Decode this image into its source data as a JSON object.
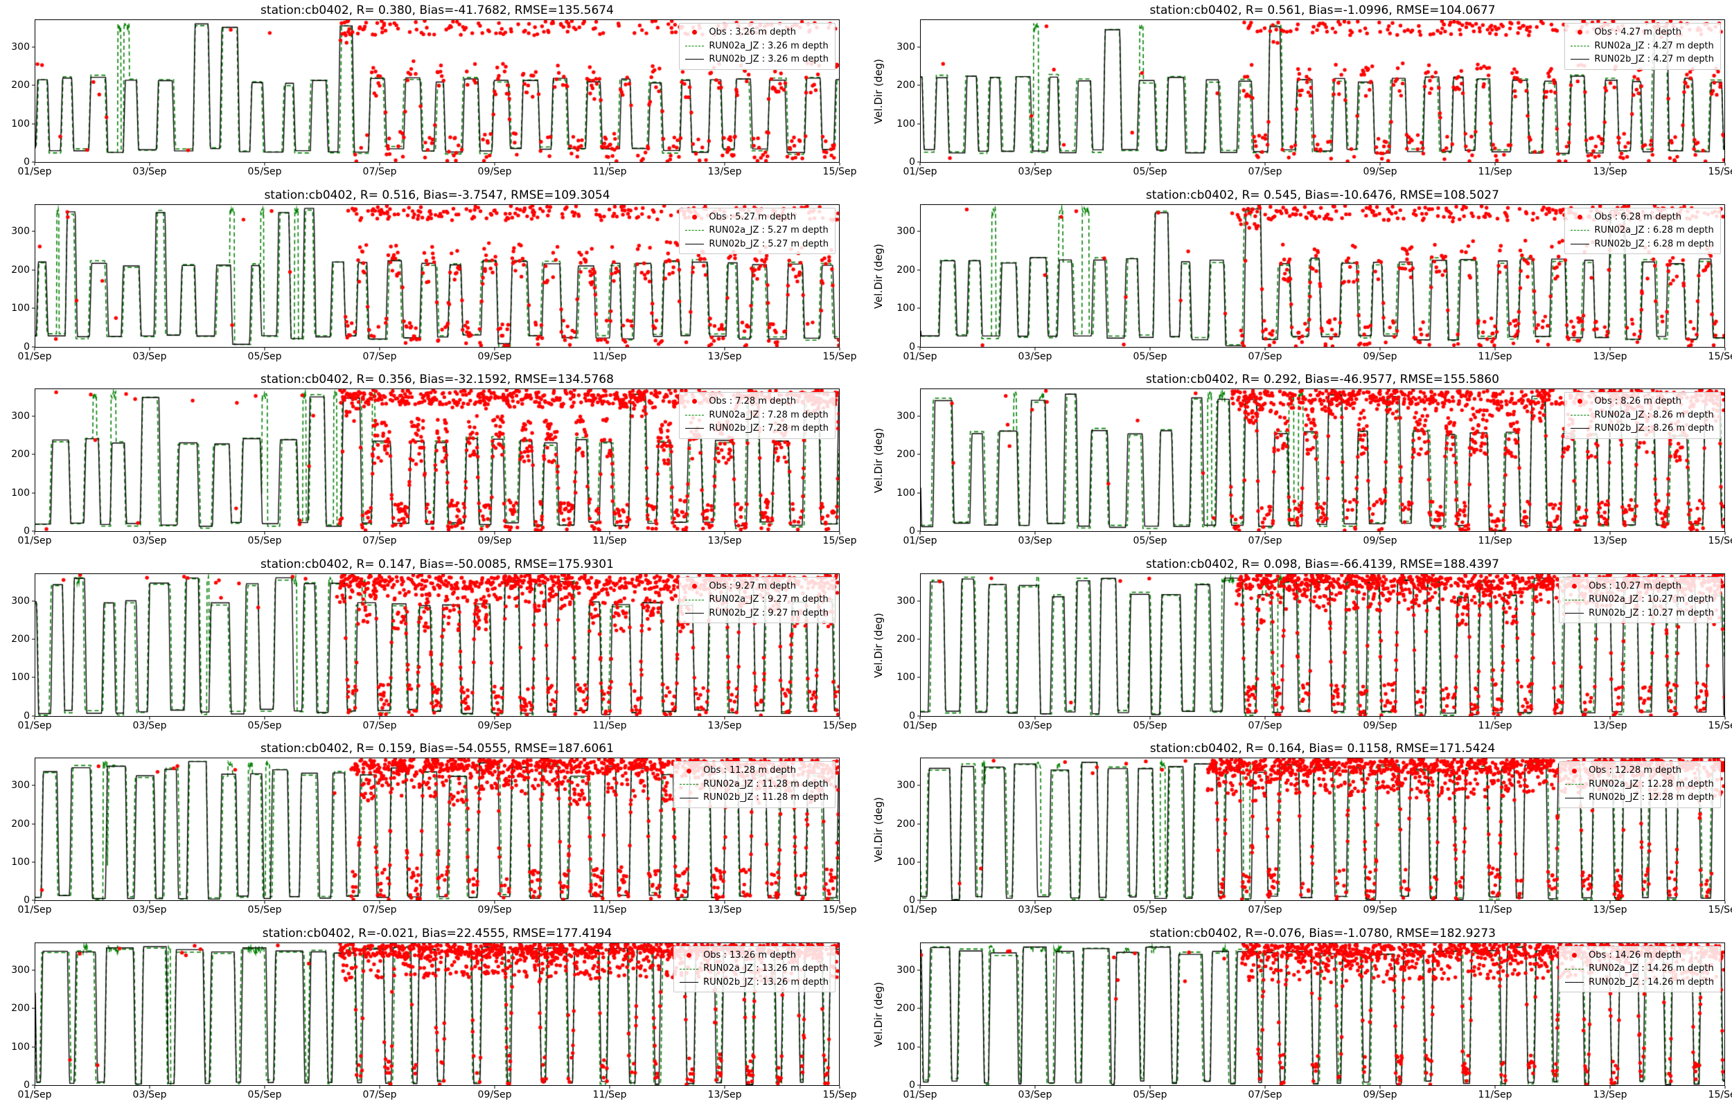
{
  "figure": {
    "station": "cb0402",
    "x_ticks": [
      "01/Sep",
      "03/Sep",
      "05/Sep",
      "07/Sep",
      "09/Sep",
      "11/Sep",
      "13/Sep",
      "15/Sep"
    ],
    "y_ticks": [
      0,
      100,
      200,
      300
    ],
    "ylabel_right_column": "Vel.Dir (deg)",
    "colors": {
      "obs": "#ff0000",
      "run02a": "#008000",
      "run02b": "#000000"
    },
    "grid": false,
    "legend_location": "upper right",
    "layout": "6 rows x 2 columns of time-series subplots, 01/Sep to 15/Sep"
  },
  "chart_data": [
    {
      "type": "line+scatter",
      "title": "station:cb0402, R= 0.380, Bias=-41.7682, RMSE=135.5674",
      "stats": {
        "R": 0.38,
        "Bias": -41.7682,
        "RMSE": 135.5674
      },
      "depth_m": 3.26,
      "ylabel": "",
      "xlabel": "",
      "xlim": [
        "01/Sep",
        "15/Sep"
      ],
      "ylim": [
        0,
        370
      ],
      "series": [
        {
          "name": "Obs : 3.26 m depth",
          "style": "scatter",
          "color": "#ff0000"
        },
        {
          "name": "RUN02a_JZ : 3.26 m depth",
          "style": "dashed",
          "color": "#008000"
        },
        {
          "name": "RUN02b_JZ : 3.26 m depth",
          "style": "solid",
          "color": "#000000"
        }
      ],
      "pattern": {
        "seed": 1,
        "low": 30,
        "high": 213,
        "duty": 0.46,
        "spike": 0.05,
        "dip": 0.0,
        "green_spikes": 2,
        "obs_start": 5.3,
        "obs_pre": 0.012,
        "obs_density": 0.42,
        "obs_top": 0.3,
        "obs_spread": 90,
        "obs_reps": 1
      }
    },
    {
      "type": "line+scatter",
      "title": "station:cb0402, R= 0.561, Bias=-1.0996, RMSE=104.0677",
      "stats": {
        "R": 0.561,
        "Bias": -1.0996,
        "RMSE": 104.0677
      },
      "depth_m": 4.27,
      "ylabel": "Vel.Dir (deg)",
      "xlabel": "",
      "xlim": [
        "01/Sep",
        "15/Sep"
      ],
      "ylim": [
        0,
        370
      ],
      "series": [
        {
          "name": "Obs : 4.27 m depth",
          "style": "scatter",
          "color": "#ff0000"
        },
        {
          "name": "RUN02a_JZ : 4.27 m depth",
          "style": "dashed",
          "color": "#008000"
        },
        {
          "name": "RUN02b_JZ : 4.27 m depth",
          "style": "solid",
          "color": "#000000"
        }
      ],
      "pattern": {
        "seed": 2,
        "low": 28,
        "high": 216,
        "duty": 0.46,
        "spike": 0.07,
        "dip": 0.0,
        "green_spikes": 2,
        "obs_start": 5.6,
        "obs_pre": 0.01,
        "obs_density": 0.45,
        "obs_top": 0.32,
        "obs_spread": 90,
        "obs_reps": 1
      }
    },
    {
      "type": "line+scatter",
      "title": "station:cb0402, R= 0.516, Bias=-3.7547, RMSE=109.3054",
      "stats": {
        "R": 0.516,
        "Bias": -3.7547,
        "RMSE": 109.3054
      },
      "depth_m": 5.27,
      "ylabel": "",
      "xlabel": "",
      "xlim": [
        "01/Sep",
        "15/Sep"
      ],
      "ylim": [
        0,
        370
      ],
      "series": [
        {
          "name": "Obs : 5.27 m depth",
          "style": "scatter",
          "color": "#ff0000"
        },
        {
          "name": "RUN02a_JZ : 5.27 m depth",
          "style": "dashed",
          "color": "#008000"
        },
        {
          "name": "RUN02b_JZ : 5.27 m depth",
          "style": "solid",
          "color": "#000000"
        }
      ],
      "pattern": {
        "seed": 3,
        "low": 26,
        "high": 218,
        "duty": 0.47,
        "spike": 0.09,
        "dip": 0.02,
        "green_spikes": 4,
        "obs_start": 5.4,
        "obs_pre": 0.012,
        "obs_density": 0.5,
        "obs_top": 0.33,
        "obs_spread": 100,
        "obs_reps": 1
      }
    },
    {
      "type": "line+scatter",
      "title": "station:cb0402, R= 0.545, Bias=-10.6476, RMSE=108.5027",
      "stats": {
        "R": 0.545,
        "Bias": -10.6476,
        "RMSE": 108.5027
      },
      "depth_m": 6.28,
      "ylabel": "Vel.Dir (deg)",
      "xlabel": "",
      "xlim": [
        "01/Sep",
        "15/Sep"
      ],
      "ylim": [
        0,
        370
      ],
      "series": [
        {
          "name": "Obs : 6.28 m depth",
          "style": "scatter",
          "color": "#ff0000"
        },
        {
          "name": "RUN02a_JZ : 6.28 m depth",
          "style": "dashed",
          "color": "#008000"
        },
        {
          "name": "RUN02b_JZ : 6.28 m depth",
          "style": "solid",
          "color": "#000000"
        }
      ],
      "pattern": {
        "seed": 4,
        "low": 24,
        "high": 225,
        "duty": 0.47,
        "spike": 0.15,
        "dip": 0.03,
        "green_spikes": 5,
        "obs_start": 5.5,
        "obs_pre": 0.012,
        "obs_density": 0.5,
        "obs_top": 0.3,
        "obs_spread": 105,
        "obs_reps": 1
      }
    },
    {
      "type": "line+scatter",
      "title": "station:cb0402, R= 0.356, Bias=-32.1592, RMSE=134.5768",
      "stats": {
        "R": 0.356,
        "Bias": -32.1592,
        "RMSE": 134.5768
      },
      "depth_m": 7.28,
      "ylabel": "",
      "xlabel": "",
      "xlim": [
        "01/Sep",
        "15/Sep"
      ],
      "ylim": [
        0,
        370
      ],
      "series": [
        {
          "name": "Obs : 7.28 m depth",
          "style": "scatter",
          "color": "#ff0000"
        },
        {
          "name": "RUN02a_JZ : 7.28 m depth",
          "style": "dashed",
          "color": "#008000"
        },
        {
          "name": "RUN02b_JZ : 7.28 m depth",
          "style": "solid",
          "color": "#000000"
        }
      ],
      "pattern": {
        "seed": 5,
        "low": 18,
        "high": 235,
        "duty": 0.52,
        "spike": 0.28,
        "dip": 0.06,
        "green_spikes": 6,
        "obs_start": 5.3,
        "obs_pre": 0.014,
        "obs_density": 0.55,
        "obs_top": 0.3,
        "obs_spread": 120,
        "obs_reps": 2
      }
    },
    {
      "type": "line+scatter",
      "title": "station:cb0402, R= 0.292, Bias=-46.9577, RMSE=155.5860",
      "stats": {
        "R": 0.292,
        "Bias": -46.9577,
        "RMSE": 155.586
      },
      "depth_m": 8.26,
      "ylabel": "Vel.Dir (deg)",
      "xlabel": "",
      "xlim": [
        "01/Sep",
        "15/Sep"
      ],
      "ylim": [
        0,
        370
      ],
      "series": [
        {
          "name": "Obs : 8.26 m depth",
          "style": "scatter",
          "color": "#ff0000"
        },
        {
          "name": "RUN02a_JZ : 8.26 m depth",
          "style": "dashed",
          "color": "#008000"
        },
        {
          "name": "RUN02b_JZ : 8.26 m depth",
          "style": "solid",
          "color": "#000000"
        }
      ],
      "pattern": {
        "seed": 6,
        "low": 15,
        "high": 255,
        "duty": 0.52,
        "spike": 0.42,
        "dip": 0.08,
        "green_spikes": 6,
        "obs_start": 5.4,
        "obs_pre": 0.014,
        "obs_density": 0.55,
        "obs_top": 0.28,
        "obs_spread": 130,
        "obs_reps": 2
      }
    },
    {
      "type": "line+scatter",
      "title": "station:cb0402, R= 0.147, Bias=-50.0085, RMSE=175.9301",
      "stats": {
        "R": 0.147,
        "Bias": -50.0085,
        "RMSE": 175.9301
      },
      "depth_m": 9.27,
      "ylabel": "",
      "xlabel": "",
      "xlim": [
        "01/Sep",
        "15/Sep"
      ],
      "ylim": [
        0,
        370
      ],
      "series": [
        {
          "name": "Obs : 9.27 m depth",
          "style": "scatter",
          "color": "#ff0000"
        },
        {
          "name": "RUN02a_JZ : 9.27 m depth",
          "style": "dashed",
          "color": "#008000"
        },
        {
          "name": "RUN02b_JZ : 9.27 m depth",
          "style": "solid",
          "color": "#000000"
        }
      ],
      "pattern": {
        "seed": 7,
        "low": 12,
        "high": 295,
        "duty": 0.55,
        "spike": 0.55,
        "dip": 0.14,
        "green_spikes": 5,
        "obs_start": 5.3,
        "obs_pre": 0.014,
        "obs_density": 0.55,
        "obs_top": 0.28,
        "obs_spread": 140,
        "obs_reps": 2
      }
    },
    {
      "type": "line+scatter",
      "title": "station:cb0402, R= 0.098, Bias=-66.4139, RMSE=188.4397",
      "stats": {
        "R": 0.098,
        "Bias": -66.4139,
        "RMSE": 188.4397
      },
      "depth_m": 10.27,
      "ylabel": "Vel.Dir (deg)",
      "xlabel": "",
      "xlim": [
        "01/Sep",
        "15/Sep"
      ],
      "ylim": [
        0,
        370
      ],
      "series": [
        {
          "name": "Obs : 10.27 m depth",
          "style": "scatter",
          "color": "#ff0000"
        },
        {
          "name": "RUN02a_JZ : 10.27 m depth",
          "style": "dashed",
          "color": "#008000"
        },
        {
          "name": "RUN02b_JZ : 10.27 m depth",
          "style": "solid",
          "color": "#000000"
        }
      ],
      "pattern": {
        "seed": 8,
        "low": 10,
        "high": 315,
        "duty": 0.58,
        "spike": 0.62,
        "dip": 0.2,
        "green_spikes": 5,
        "obs_start": 5.5,
        "obs_pre": 0.014,
        "obs_density": 0.6,
        "obs_top": 0.28,
        "obs_spread": 150,
        "obs_reps": 2
      }
    },
    {
      "type": "line+scatter",
      "title": "station:cb0402, R= 0.159, Bias=-54.0555, RMSE=187.6061",
      "stats": {
        "R": 0.159,
        "Bias": -54.0555,
        "RMSE": 187.6061
      },
      "depth_m": 11.28,
      "ylabel": "",
      "xlabel": "",
      "xlim": [
        "01/Sep",
        "15/Sep"
      ],
      "ylim": [
        0,
        370
      ],
      "series": [
        {
          "name": "Obs : 11.28 m depth",
          "style": "scatter",
          "color": "#ff0000"
        },
        {
          "name": "RUN02a_JZ : 11.28 m depth",
          "style": "dashed",
          "color": "#008000"
        },
        {
          "name": "RUN02b_JZ : 11.28 m depth",
          "style": "solid",
          "color": "#000000"
        }
      ],
      "pattern": {
        "seed": 9,
        "low": 8,
        "high": 330,
        "duty": 0.6,
        "spike": 0.7,
        "dip": 0.24,
        "green_spikes": 5,
        "obs_start": 5.5,
        "obs_pre": 0.012,
        "obs_density": 0.6,
        "obs_top": 0.26,
        "obs_spread": 150,
        "obs_reps": 2
      }
    },
    {
      "type": "line+scatter",
      "title": "station:cb0402, R= 0.164, Bias= 0.1158, RMSE=171.5424",
      "stats": {
        "R": 0.164,
        "Bias": 0.1158,
        "RMSE": 171.5424
      },
      "depth_m": 12.28,
      "ylabel": "Vel.Dir (deg)",
      "xlabel": "",
      "xlim": [
        "01/Sep",
        "15/Sep"
      ],
      "ylim": [
        0,
        370
      ],
      "series": [
        {
          "name": "Obs : 12.28 m depth",
          "style": "scatter",
          "color": "#ff0000"
        },
        {
          "name": "RUN02a_JZ : 12.28 m depth",
          "style": "dashed",
          "color": "#008000"
        },
        {
          "name": "RUN02b_JZ : 12.28 m depth",
          "style": "solid",
          "color": "#000000"
        }
      ],
      "pattern": {
        "seed": 10,
        "low": 6,
        "high": 340,
        "duty": 0.64,
        "spike": 0.8,
        "dip": 0.3,
        "green_spikes": 6,
        "obs_start": 5.0,
        "obs_pre": 0.018,
        "obs_density": 0.6,
        "obs_top": 0.26,
        "obs_spread": 150,
        "obs_reps": 2
      }
    },
    {
      "type": "line+scatter",
      "title": "station:cb0402, R=-0.021, Bias=22.4555, RMSE=177.4194",
      "stats": {
        "R": -0.021,
        "Bias": 22.4555,
        "RMSE": 177.4194
      },
      "depth_m": 13.26,
      "ylabel": "",
      "xlabel": "",
      "xlim": [
        "01/Sep",
        "15/Sep"
      ],
      "ylim": [
        0,
        370
      ],
      "series": [
        {
          "name": "Obs : 13.26 m depth",
          "style": "scatter",
          "color": "#ff0000"
        },
        {
          "name": "RUN02a_JZ : 13.26 m depth",
          "style": "dashed",
          "color": "#008000"
        },
        {
          "name": "RUN02b_JZ : 13.26 m depth",
          "style": "solid",
          "color": "#000000"
        }
      ],
      "pattern": {
        "seed": 11,
        "low": 5,
        "high": 350,
        "duty": 0.76,
        "spike": 0.9,
        "dip": 0.32,
        "green_spikes": 8,
        "obs_start": 5.3,
        "obs_pre": 0.012,
        "obs_density": 0.55,
        "obs_top": 0.25,
        "obs_spread": 150,
        "obs_reps": 2
      }
    },
    {
      "type": "line+scatter",
      "title": "station:cb0402, R=-0.076, Bias=-1.0780, RMSE=182.9273",
      "stats": {
        "R": -0.076,
        "Bias": -1.078,
        "RMSE": 182.9273
      },
      "depth_m": 14.26,
      "ylabel": "Vel.Dir (deg)",
      "xlabel": "",
      "xlim": [
        "01/Sep",
        "15/Sep"
      ],
      "ylim": [
        0,
        370
      ],
      "series": [
        {
          "name": "Obs : 14.26 m depth",
          "style": "scatter",
          "color": "#ff0000"
        },
        {
          "name": "RUN02a_JZ : 14.26 m depth",
          "style": "dashed",
          "color": "#008000"
        },
        {
          "name": "RUN02b_JZ : 14.26 m depth",
          "style": "solid",
          "color": "#000000"
        }
      ],
      "pattern": {
        "seed": 12,
        "low": 5,
        "high": 352,
        "duty": 0.78,
        "spike": 0.9,
        "dip": 0.3,
        "green_spikes": 8,
        "obs_start": 5.6,
        "obs_pre": 0.012,
        "obs_density": 0.55,
        "obs_top": 0.25,
        "obs_spread": 150,
        "obs_reps": 2
      }
    }
  ]
}
